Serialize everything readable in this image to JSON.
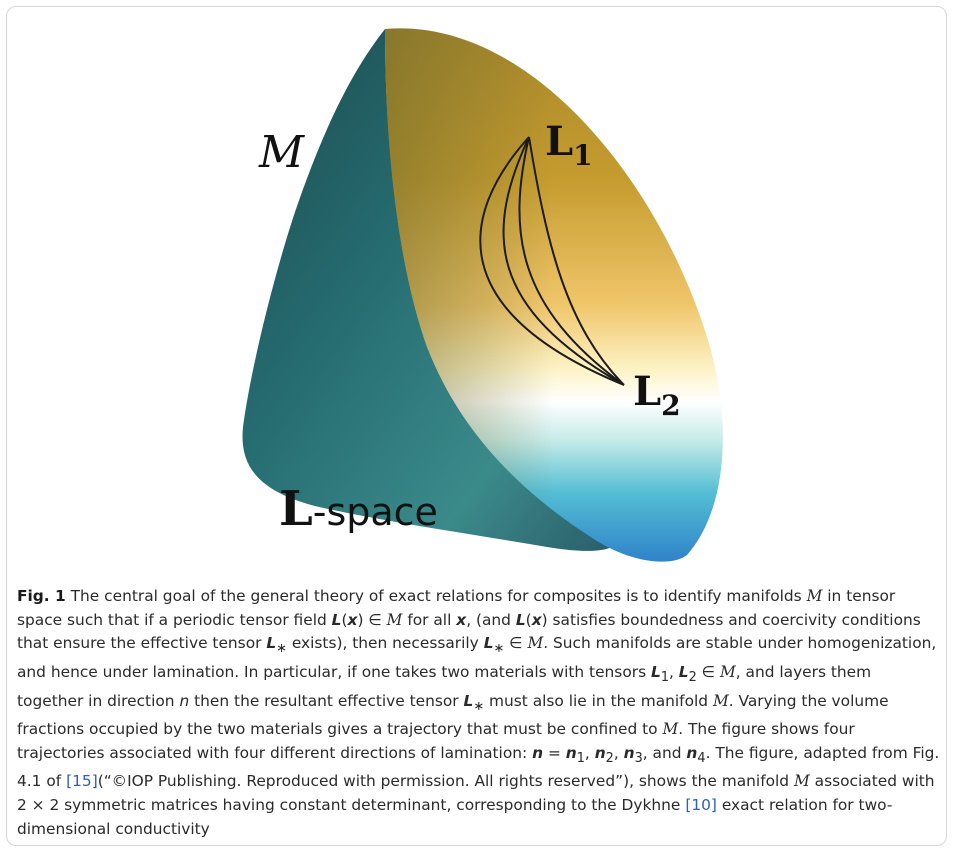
{
  "figure": {
    "label_manifold": "M",
    "label_L1_base": "L",
    "label_L1_sub": "1",
    "label_L2_base": "L",
    "label_L2_sub": "2",
    "label_space_L": "L",
    "label_space_text": "-space"
  },
  "caption": {
    "label": "Fig. 1",
    "t1": "The central goal of the general theory of exact relations for composites is to identify manifolds",
    "t2": "in tensor space such that if a periodic tensor field",
    "t3": "for all",
    "t4": ", (and",
    "t5": "satisfies boundedness and coercivity conditions that ensure the effective tensor",
    "t6": "exists), then necessarily",
    "t7": ". Such manifolds are stable under homogenization, and hence under lamination. In particular, if one takes two materials with tensors",
    "t8": ", and layers them together in direction",
    "t9": "then the resultant effective tensor",
    "t10": "must also lie in the manifold",
    "t11": ". Varying the volume fractions occupied by the two materials gives a trajectory that must be confined to",
    "t12": ". The figure shows four trajectories associated with four different directions of lamination:",
    "t13": ", and",
    "t14": ". The figure, adapted from Fig. 4.1 of",
    "ref1": "[15]",
    "t15": "(“©IOP Publishing. Reproduced with permission. All rights reserved”), shows the manifold",
    "t16": "associated with 2 × 2 symmetric matrices having constant determinant, corresponding to the Dykhne",
    "ref2": "[10]",
    "t17": "exact relation for two-dimensional conductivity"
  }
}
